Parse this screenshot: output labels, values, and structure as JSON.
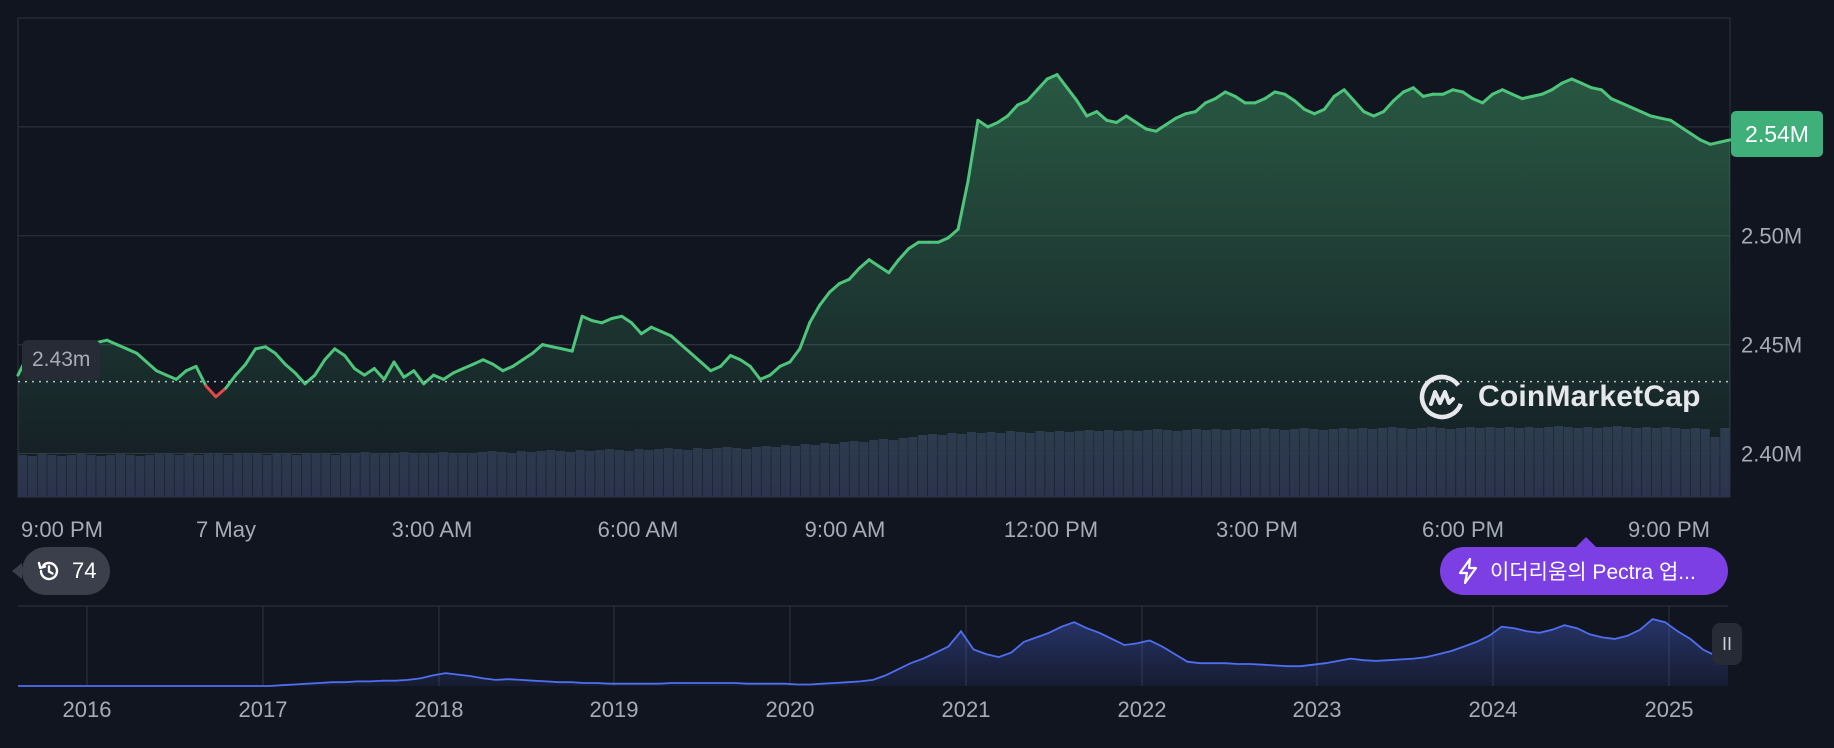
{
  "chart_data": [
    {
      "type": "line",
      "title": "",
      "xlabel": "",
      "ylabel": "",
      "x_ticks": [
        "9:00 PM",
        "7 May",
        "3:00 AM",
        "6:00 AM",
        "9:00 AM",
        "12:00 PM",
        "3:00 PM",
        "6:00 PM",
        "9:00 PM"
      ],
      "y_ticks": [
        "2.40M",
        "2.45M",
        "2.50M"
      ],
      "ylim": [
        2.38,
        2.6
      ],
      "open_value": 2.433,
      "open_label": "2.43m",
      "current_value": 2.544,
      "current_label": "2.54M",
      "series": [
        {
          "values": [
            2.436,
            2.445,
            2.45,
            2.448,
            2.45,
            2.449,
            2.447,
            2.449,
            2.451,
            2.452,
            2.45,
            2.448,
            2.446,
            2.442,
            2.438,
            2.436,
            2.434,
            2.438,
            2.44,
            2.431,
            2.426,
            2.43,
            2.436,
            2.441,
            2.448,
            2.449,
            2.446,
            2.441,
            2.437,
            2.432,
            2.436,
            2.443,
            2.448,
            2.445,
            2.439,
            2.436,
            2.439,
            2.434,
            2.442,
            2.435,
            2.438,
            2.432,
            2.436,
            2.434,
            2.437,
            2.439,
            2.441,
            2.443,
            2.441,
            2.438,
            2.44,
            2.443,
            2.446,
            2.45,
            2.449,
            2.448,
            2.447,
            2.463,
            2.461,
            2.46,
            2.462,
            2.463,
            2.46,
            2.455,
            2.458,
            2.456,
            2.454,
            2.45,
            2.446,
            2.442,
            2.438,
            2.44,
            2.445,
            2.443,
            2.44,
            2.434,
            2.436,
            2.44,
            2.442,
            2.448,
            2.46,
            2.468,
            2.474,
            2.478,
            2.48,
            2.485,
            2.489,
            2.486,
            2.483,
            2.489,
            2.494,
            2.497,
            2.497,
            2.497,
            2.499,
            2.503,
            2.525,
            2.553,
            2.55,
            2.552,
            2.555,
            2.56,
            2.562,
            2.567,
            2.572,
            2.574,
            2.568,
            2.562,
            2.555,
            2.557,
            2.553,
            2.552,
            2.555,
            2.552,
            2.549,
            2.548,
            2.551,
            2.554,
            2.556,
            2.557,
            2.561,
            2.563,
            2.566,
            2.564,
            2.561,
            2.561,
            2.563,
            2.566,
            2.565,
            2.562,
            2.558,
            2.556,
            2.558,
            2.564,
            2.567,
            2.562,
            2.557,
            2.555,
            2.557,
            2.562,
            2.566,
            2.568,
            2.564,
            2.565,
            2.565,
            2.567,
            2.566,
            2.563,
            2.561,
            2.565,
            2.567,
            2.565,
            2.563,
            2.564,
            2.565,
            2.567,
            2.57,
            2.572,
            2.57,
            2.568,
            2.567,
            2.563,
            2.561,
            2.559,
            2.557,
            2.555,
            2.554,
            2.553,
            2.55,
            2.547,
            2.544,
            2.542,
            2.543,
            2.544
          ]
        }
      ],
      "volume": [
        0.42,
        0.41,
        0.43,
        0.42,
        0.41,
        0.42,
        0.43,
        0.42,
        0.41,
        0.42,
        0.43,
        0.42,
        0.41,
        0.42,
        0.43,
        0.44,
        0.42,
        0.43,
        0.42,
        0.44,
        0.43,
        0.42,
        0.43,
        0.44,
        0.43,
        0.42,
        0.44,
        0.43,
        0.42,
        0.43,
        0.44,
        0.43,
        0.42,
        0.43,
        0.44,
        0.45,
        0.43,
        0.44,
        0.43,
        0.45,
        0.44,
        0.43,
        0.44,
        0.45,
        0.44,
        0.43,
        0.44,
        0.45,
        0.46,
        0.45,
        0.44,
        0.46,
        0.45,
        0.46,
        0.47,
        0.46,
        0.45,
        0.47,
        0.46,
        0.47,
        0.48,
        0.47,
        0.46,
        0.48,
        0.47,
        0.48,
        0.49,
        0.48,
        0.47,
        0.49,
        0.48,
        0.49,
        0.5,
        0.49,
        0.48,
        0.5,
        0.51,
        0.5,
        0.52,
        0.51,
        0.53,
        0.52,
        0.54,
        0.53,
        0.55,
        0.56,
        0.55,
        0.57,
        0.58,
        0.57,
        0.59,
        0.6,
        0.62,
        0.63,
        0.62,
        0.64,
        0.63,
        0.65,
        0.64,
        0.65,
        0.64,
        0.66,
        0.65,
        0.64,
        0.66,
        0.65,
        0.66,
        0.65,
        0.66,
        0.67,
        0.66,
        0.67,
        0.66,
        0.67,
        0.66,
        0.67,
        0.68,
        0.67,
        0.66,
        0.67,
        0.68,
        0.67,
        0.68,
        0.67,
        0.68,
        0.67,
        0.68,
        0.69,
        0.68,
        0.67,
        0.68,
        0.69,
        0.68,
        0.67,
        0.68,
        0.69,
        0.68,
        0.69,
        0.68,
        0.69,
        0.7,
        0.69,
        0.68,
        0.69,
        0.7,
        0.69,
        0.68,
        0.69,
        0.7,
        0.69,
        0.7,
        0.69,
        0.7,
        0.69,
        0.7,
        0.69,
        0.7,
        0.71,
        0.7,
        0.69,
        0.7,
        0.69,
        0.7,
        0.71,
        0.7,
        0.69,
        0.7,
        0.69,
        0.7,
        0.69,
        0.68,
        0.69,
        0.68,
        0.6,
        0.69
      ]
    },
    {
      "type": "area",
      "title": "",
      "x_ticks": [
        "2016",
        "2017",
        "2018",
        "2019",
        "2020",
        "2021",
        "2022",
        "2023",
        "2024",
        "2025"
      ],
      "series": [
        {
          "values": [
            0.0,
            0.0,
            0.0,
            0.0,
            0.0,
            0.0,
            0.0,
            0.0,
            0.0,
            0.0,
            0.0,
            0.0,
            0.0,
            0.0,
            0.0,
            0.0,
            0.0,
            0.0,
            0.0,
            0.0,
            0.0,
            0.01,
            0.02,
            0.03,
            0.04,
            0.05,
            0.05,
            0.06,
            0.06,
            0.07,
            0.07,
            0.08,
            0.1,
            0.14,
            0.17,
            0.15,
            0.13,
            0.1,
            0.08,
            0.09,
            0.08,
            0.07,
            0.06,
            0.05,
            0.05,
            0.04,
            0.04,
            0.03,
            0.03,
            0.03,
            0.03,
            0.03,
            0.04,
            0.04,
            0.04,
            0.04,
            0.04,
            0.04,
            0.03,
            0.03,
            0.03,
            0.03,
            0.02,
            0.02,
            0.03,
            0.04,
            0.05,
            0.06,
            0.08,
            0.14,
            0.22,
            0.3,
            0.36,
            0.44,
            0.52,
            0.72,
            0.48,
            0.42,
            0.38,
            0.44,
            0.58,
            0.64,
            0.7,
            0.78,
            0.84,
            0.76,
            0.7,
            0.62,
            0.54,
            0.56,
            0.6,
            0.52,
            0.42,
            0.32,
            0.3,
            0.3,
            0.3,
            0.29,
            0.29,
            0.28,
            0.27,
            0.26,
            0.26,
            0.28,
            0.3,
            0.33,
            0.36,
            0.34,
            0.33,
            0.34,
            0.35,
            0.36,
            0.38,
            0.42,
            0.46,
            0.52,
            0.58,
            0.66,
            0.78,
            0.76,
            0.72,
            0.7,
            0.74,
            0.8,
            0.76,
            0.68,
            0.64,
            0.62,
            0.66,
            0.74,
            0.88,
            0.84,
            0.72,
            0.62,
            0.48,
            0.4,
            0.38
          ]
        }
      ]
    }
  ],
  "history_badge": {
    "count": "74",
    "icon": "history-icon"
  },
  "event_pill": {
    "label": "이더리움의 Pectra 업...",
    "icon": "lightning-icon"
  },
  "watermark": {
    "text": "CoinMarketCap",
    "icon": "coinmarketcap-logo-icon"
  },
  "pause_handle": {
    "icon": "pause-icon",
    "label": "II"
  },
  "colors": {
    "background": "#111520",
    "line_up": "#4ec57a",
    "line_down": "#e04a4a",
    "volume": "#2a2f4a",
    "overview_line": "#4f6ef0",
    "badge": "#3fb07a",
    "event_pill": "#7b3fe4",
    "grid": "#2b303b"
  }
}
